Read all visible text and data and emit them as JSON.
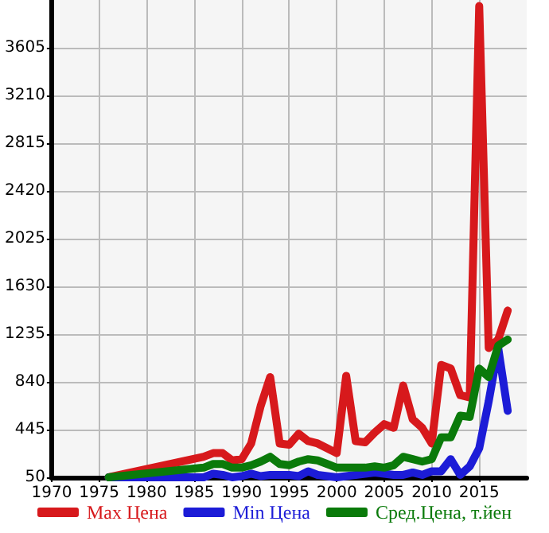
{
  "chart_data": {
    "type": "line",
    "x": [
      1976,
      1986,
      1987,
      1988,
      1989,
      1990,
      1991,
      1992,
      1993,
      1994,
      1995,
      1996,
      1997,
      1998,
      1999,
      2000,
      2001,
      2002,
      2003,
      2004,
      2005,
      2006,
      2007,
      2008,
      2009,
      2010,
      2011,
      2012,
      2013,
      2014,
      2015,
      2016,
      2017,
      2018
    ],
    "series": [
      {
        "name": "Max Цена",
        "color": "#d7191c",
        "values": [
          50,
          220,
          250,
          250,
          190,
          200,
          330,
          640,
          880,
          330,
          320,
          410,
          350,
          330,
          290,
          250,
          890,
          350,
          340,
          420,
          490,
          460,
          810,
          530,
          460,
          330,
          980,
          950,
          730,
          710,
          3950,
          1120,
          1190,
          1430
        ]
      },
      {
        "name": "Min Цена",
        "color": "#1c1cd7",
        "values": [
          50,
          50,
          80,
          70,
          50,
          60,
          80,
          60,
          70,
          70,
          70,
          60,
          100,
          70,
          60,
          50,
          60,
          70,
          80,
          90,
          80,
          70,
          70,
          90,
          70,
          100,
          100,
          200,
          70,
          140,
          290,
          680,
          1120,
          600
        ]
      },
      {
        "name": "Сред.Цена, т.йен",
        "color": "#0a7a0a",
        "values": [
          50,
          130,
          160,
          160,
          130,
          130,
          150,
          180,
          220,
          160,
          150,
          180,
          200,
          190,
          160,
          130,
          130,
          130,
          130,
          140,
          130,
          150,
          220,
          200,
          180,
          200,
          380,
          380,
          560,
          550,
          950,
          880,
          1140,
          1190
        ]
      }
    ],
    "xlim": [
      1970,
      2020
    ],
    "xticks": [
      1970,
      1975,
      1980,
      1985,
      1990,
      1995,
      2000,
      2005,
      2010,
      2015
    ],
    "ylim": [
      50,
      4000
    ],
    "yticks": [
      50,
      445,
      840,
      1235,
      1630,
      2025,
      2420,
      2815,
      3210,
      3605
    ],
    "grid": true,
    "legend": "bottom",
    "marker": "none",
    "line_style": "solid"
  }
}
